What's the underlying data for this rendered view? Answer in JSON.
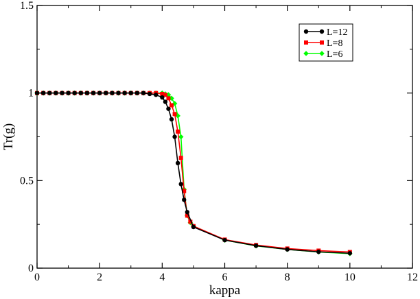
{
  "chart_data": {
    "type": "line",
    "title": "",
    "xlabel": "kappa",
    "ylabel": "Tr(g)",
    "xlim": [
      0,
      12
    ],
    "ylim": [
      0,
      1.5
    ],
    "xticks": [
      0,
      2,
      4,
      6,
      8,
      10,
      12
    ],
    "yticks": [
      0,
      0.5,
      1,
      1.5
    ],
    "xtick_labels": [
      "0",
      "2",
      "4",
      "6",
      "8",
      "10",
      "12"
    ],
    "ytick_labels": [
      "0",
      "0.5",
      "1",
      "1.5"
    ],
    "grid": false,
    "legend_position": "top-right",
    "series": [
      {
        "name": "L=12",
        "color": "#000000",
        "marker": "circle",
        "x": [
          0.0,
          0.2,
          0.4,
          0.6,
          0.8,
          1.0,
          1.2,
          1.4,
          1.6,
          1.8,
          2.0,
          2.2,
          2.4,
          2.6,
          2.8,
          3.0,
          3.2,
          3.4,
          3.6,
          3.8,
          4.0,
          4.1,
          4.2,
          4.3,
          4.4,
          4.5,
          4.6,
          4.7,
          4.8,
          5.0,
          6.0,
          7.0,
          8.0,
          9.0,
          10.0
        ],
        "y": [
          1.0,
          1.0,
          1.0,
          1.0,
          1.0,
          1.0,
          1.0,
          1.0,
          1.0,
          1.0,
          1.0,
          1.0,
          1.0,
          1.0,
          1.0,
          1.0,
          1.0,
          1.0,
          0.995,
          0.99,
          0.975,
          0.95,
          0.91,
          0.85,
          0.75,
          0.6,
          0.48,
          0.39,
          0.32,
          0.235,
          0.16,
          0.128,
          0.107,
          0.093,
          0.085
        ]
      },
      {
        "name": "L=8",
        "color": "#ff0000",
        "marker": "square",
        "x": [
          0.0,
          0.2,
          0.4,
          0.6,
          0.8,
          1.0,
          1.2,
          1.4,
          1.6,
          1.8,
          2.0,
          2.2,
          2.4,
          2.6,
          2.8,
          3.0,
          3.2,
          3.4,
          3.6,
          3.8,
          4.0,
          4.1,
          4.2,
          4.3,
          4.4,
          4.5,
          4.6,
          4.7,
          4.8,
          4.9,
          5.0,
          6.0,
          7.0,
          8.0,
          9.0,
          10.0
        ],
        "y": [
          1.0,
          1.0,
          1.0,
          1.0,
          1.0,
          1.0,
          1.0,
          1.0,
          1.0,
          1.0,
          1.0,
          1.0,
          1.0,
          1.0,
          1.0,
          1.0,
          1.0,
          1.0,
          1.0,
          1.0,
          0.995,
          0.99,
          0.97,
          0.93,
          0.88,
          0.78,
          0.63,
          0.44,
          0.3,
          0.265,
          0.24,
          0.163,
          0.132,
          0.112,
          0.1,
          0.092
        ]
      },
      {
        "name": "L=6",
        "color": "#00ff00",
        "marker": "diamond",
        "x": [
          0.0,
          0.2,
          0.4,
          0.6,
          0.8,
          1.0,
          1.2,
          1.4,
          1.6,
          1.8,
          2.0,
          2.2,
          2.4,
          2.6,
          2.8,
          3.0,
          3.2,
          3.4,
          3.6,
          3.8,
          4.0,
          4.1,
          4.2,
          4.3,
          4.4,
          4.5,
          4.6,
          4.7,
          4.8,
          4.9,
          5.0,
          6.0,
          7.0,
          8.0,
          9.0,
          10.0
        ],
        "y": [
          1.0,
          1.0,
          1.0,
          1.0,
          1.0,
          1.0,
          1.0,
          1.0,
          1.0,
          1.0,
          1.0,
          1.0,
          1.0,
          1.0,
          1.0,
          1.0,
          1.0,
          1.0,
          1.0,
          1.0,
          1.0,
          0.995,
          0.99,
          0.97,
          0.94,
          0.87,
          0.75,
          0.45,
          0.3,
          0.26,
          0.24,
          0.16,
          0.127,
          0.107,
          0.092,
          0.083
        ]
      }
    ]
  }
}
